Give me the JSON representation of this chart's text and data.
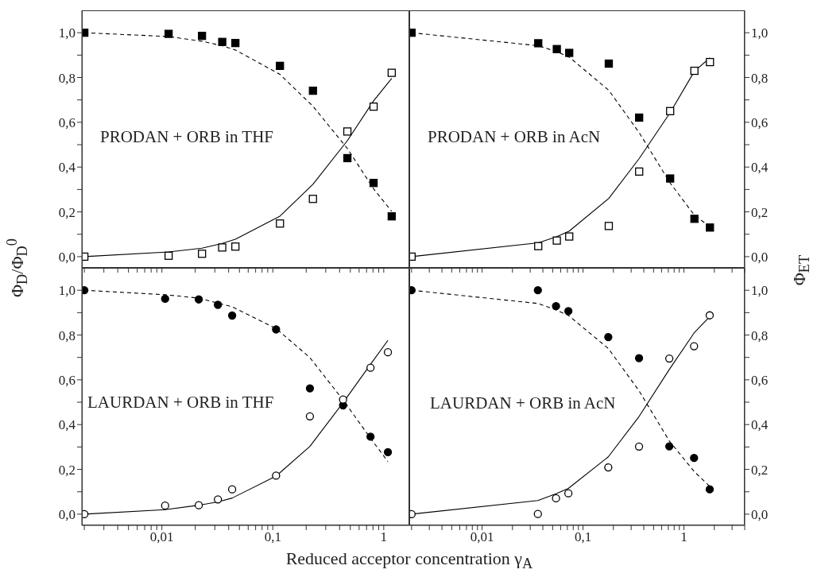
{
  "chart_data": [
    {
      "type": "scatter",
      "annotations": [
        "PRODAN + ORB in THF"
      ],
      "ylabel": "Φ$_{D}$/Φ$_{D}$$^{0}$",
      "xlim": [
        0.0019,
        1.7
      ],
      "ylim": [
        -0.05,
        1.1
      ],
      "log": "x",
      "tick_labels": "y",
      "xticks": [
        {
          "value": 0.002,
          "label": null
        },
        {
          "value": 0.003,
          "label": null
        },
        {
          "value": 0.004,
          "label": null
        },
        {
          "value": 0.005,
          "label": null
        },
        {
          "value": 0.006,
          "label": null
        },
        {
          "value": 0.007,
          "label": null
        },
        {
          "value": 0.008,
          "label": null
        },
        {
          "value": 0.009,
          "label": null
        },
        {
          "value": 0.01,
          "label": null
        },
        {
          "value": 0.02,
          "label": null
        },
        {
          "value": 0.03,
          "label": null
        },
        {
          "value": 0.04,
          "label": null
        },
        {
          "value": 0.05,
          "label": null
        },
        {
          "value": 0.06,
          "label": null
        },
        {
          "value": 0.07,
          "label": null
        },
        {
          "value": 0.08,
          "label": null
        },
        {
          "value": 0.09,
          "label": null
        },
        {
          "value": 0.1,
          "label": null
        },
        {
          "value": 0.2,
          "label": null
        },
        {
          "value": 0.3,
          "label": null
        },
        {
          "value": 0.4,
          "label": null
        },
        {
          "value": 0.5,
          "label": null
        },
        {
          "value": 0.6,
          "label": null
        },
        {
          "value": 0.7,
          "label": null
        },
        {
          "value": 0.8,
          "label": null
        },
        {
          "value": 0.9,
          "label": null
        },
        {
          "value": 1,
          "label": null
        }
      ],
      "yticks": [
        {
          "value": 0,
          "label": "0,0"
        },
        {
          "value": 0.1,
          "label": null
        },
        {
          "value": 0.2,
          "label": "0,2"
        },
        {
          "value": 0.3,
          "label": null
        },
        {
          "value": 0.4,
          "label": "0,4"
        },
        {
          "value": 0.5,
          "label": null
        },
        {
          "value": 0.6,
          "label": "0,6"
        },
        {
          "value": 0.7,
          "label": null
        },
        {
          "value": 0.8,
          "label": "0,8"
        },
        {
          "value": 0.9,
          "label": null
        },
        {
          "value": 1,
          "label": "1,0"
        }
      ],
      "series": [
        {
          "type": "line",
          "line_style": "dashed",
          "color": "#000000",
          "x": [
            0.002,
            0.0115,
            0.023,
            0.035,
            0.046,
            0.116,
            0.23,
            0.47,
            0.81,
            1.18
          ],
          "values": [
            1.0,
            0.983,
            0.962,
            0.942,
            0.923,
            0.814,
            0.672,
            0.483,
            0.303,
            0.202
          ]
        },
        {
          "type": "line",
          "line_style": "solid",
          "color": "#000000",
          "x": [
            0.002,
            0.0115,
            0.023,
            0.035,
            0.046,
            0.116,
            0.23,
            0.47,
            0.81,
            1.18
          ],
          "values": [
            0.0,
            0.021,
            0.038,
            0.059,
            0.078,
            0.181,
            0.323,
            0.518,
            0.696,
            0.796
          ]
        },
        {
          "marker": "square",
          "color": "#000000",
          "x": [
            0.002,
            0.0115,
            0.023,
            0.035,
            0.046,
            0.116,
            0.23,
            0.47,
            0.81,
            1.18
          ],
          "values": [
            1.0,
            0.995,
            0.986,
            0.959,
            0.954,
            0.852,
            0.741,
            0.44,
            0.329,
            0.18
          ]
        },
        {
          "marker": "square",
          "color": "#ffffff",
          "x": [
            0.002,
            0.0115,
            0.023,
            0.035,
            0.046,
            0.116,
            0.23,
            0.47,
            0.81,
            1.18
          ],
          "values": [
            0.0,
            0.004,
            0.013,
            0.041,
            0.045,
            0.148,
            0.258,
            0.559,
            0.67,
            0.821
          ]
        }
      ]
    },
    {
      "type": "scatter",
      "annotations": [
        "PRODAN + ORB in AcN"
      ],
      "y2label": "Φ$_{ET}$",
      "xlim": [
        0.0019,
        4
      ],
      "y2lim": [
        -0.05,
        1.1
      ],
      "log": "x",
      "tick_labels": "y",
      "xticks": [
        {
          "value": 0.002,
          "label": null
        },
        {
          "value": 0.003,
          "label": null
        },
        {
          "value": 0.004,
          "label": null
        },
        {
          "value": 0.005,
          "label": null
        },
        {
          "value": 0.006,
          "label": null
        },
        {
          "value": 0.007,
          "label": null
        },
        {
          "value": 0.008,
          "label": null
        },
        {
          "value": 0.009,
          "label": null
        },
        {
          "value": 0.01,
          "label": null
        },
        {
          "value": 0.02,
          "label": null
        },
        {
          "value": 0.03,
          "label": null
        },
        {
          "value": 0.04,
          "label": null
        },
        {
          "value": 0.05,
          "label": null
        },
        {
          "value": 0.06,
          "label": null
        },
        {
          "value": 0.07,
          "label": null
        },
        {
          "value": 0.08,
          "label": null
        },
        {
          "value": 0.09,
          "label": null
        },
        {
          "value": 0.1,
          "label": null
        },
        {
          "value": 0.2,
          "label": null
        },
        {
          "value": 0.3,
          "label": null
        },
        {
          "value": 0.4,
          "label": null
        },
        {
          "value": 0.5,
          "label": null
        },
        {
          "value": 0.6,
          "label": null
        },
        {
          "value": 0.7,
          "label": null
        },
        {
          "value": 0.8,
          "label": null
        },
        {
          "value": 0.9,
          "label": null
        },
        {
          "value": 1,
          "label": null
        },
        {
          "value": 2,
          "label": null
        },
        {
          "value": 3,
          "label": null
        },
        {
          "value": 4,
          "label": null
        }
      ],
      "y2ticks": [
        {
          "value": 0,
          "label": "0,0"
        },
        {
          "value": 0.1,
          "label": null
        },
        {
          "value": 0.2,
          "label": "0,2"
        },
        {
          "value": 0.3,
          "label": null
        },
        {
          "value": 0.4,
          "label": "0,4"
        },
        {
          "value": 0.5,
          "label": null
        },
        {
          "value": 0.6,
          "label": "0,6"
        },
        {
          "value": 0.7,
          "label": null
        },
        {
          "value": 0.8,
          "label": "0,8"
        },
        {
          "value": 0.9,
          "label": null
        },
        {
          "value": 1,
          "label": "1,0"
        }
      ],
      "series": [
        {
          "type": "line",
          "axis": "y2",
          "line_style": "dashed",
          "color": "#000000",
          "x": [
            0.002,
            0.036,
            0.055,
            0.073,
            0.18,
            0.36,
            0.73,
            1.27,
            1.81
          ],
          "values": [
            1.0,
            0.942,
            0.915,
            0.891,
            0.743,
            0.554,
            0.329,
            0.185,
            0.134
          ]
        },
        {
          "type": "line",
          "axis": "y2",
          "line_style": "solid",
          "color": "#000000",
          "x": [
            0.002,
            0.036,
            0.055,
            0.073,
            0.18,
            0.36,
            0.73,
            1.27,
            1.81
          ],
          "values": [
            0.0,
            0.062,
            0.089,
            0.114,
            0.26,
            0.438,
            0.643,
            0.828,
            0.888
          ]
        },
        {
          "axis": "y2",
          "marker": "square",
          "color": "#000000",
          "x": [
            0.002,
            0.036,
            0.055,
            0.073,
            0.18,
            0.36,
            0.73,
            1.27,
            1.81
          ],
          "values": [
            1.0,
            0.953,
            0.927,
            0.91,
            0.862,
            0.621,
            0.349,
            0.169,
            0.13
          ]
        },
        {
          "axis": "y2",
          "marker": "square",
          "color": "#ffffff",
          "x": [
            0.002,
            0.036,
            0.055,
            0.073,
            0.18,
            0.36,
            0.73,
            1.27,
            1.81
          ],
          "values": [
            0.0,
            0.047,
            0.072,
            0.09,
            0.137,
            0.38,
            0.65,
            0.83,
            0.869
          ]
        }
      ]
    },
    {
      "type": "scatter",
      "annotations": [
        "LAURDAN + ORB in THF"
      ],
      "xlabel": "Reduced acceptor concentration γ$_{A}$",
      "xlim": [
        0.0019,
        1.7
      ],
      "ylim": [
        -0.05,
        1.1
      ],
      "log": "x",
      "xticks": [
        {
          "value": 0.002,
          "label": null
        },
        {
          "value": 0.003,
          "label": null
        },
        {
          "value": 0.004,
          "label": null
        },
        {
          "value": 0.005,
          "label": null
        },
        {
          "value": 0.006,
          "label": null
        },
        {
          "value": 0.007,
          "label": null
        },
        {
          "value": 0.008,
          "label": null
        },
        {
          "value": 0.009,
          "label": null
        },
        {
          "value": 0.01,
          "label": "0,01"
        },
        {
          "value": 0.02,
          "label": null
        },
        {
          "value": 0.03,
          "label": null
        },
        {
          "value": 0.04,
          "label": null
        },
        {
          "value": 0.05,
          "label": null
        },
        {
          "value": 0.06,
          "label": null
        },
        {
          "value": 0.07,
          "label": null
        },
        {
          "value": 0.08,
          "label": null
        },
        {
          "value": 0.09,
          "label": null
        },
        {
          "value": 0.1,
          "label": "0,1"
        },
        {
          "value": 0.2,
          "label": null
        },
        {
          "value": 0.3,
          "label": null
        },
        {
          "value": 0.4,
          "label": null
        },
        {
          "value": 0.5,
          "label": null
        },
        {
          "value": 0.6,
          "label": null
        },
        {
          "value": 0.7,
          "label": null
        },
        {
          "value": 0.8,
          "label": null
        },
        {
          "value": 0.9,
          "label": null
        },
        {
          "value": 1,
          "label": "1"
        }
      ],
      "yticks": [
        {
          "value": 0,
          "label": "0,0"
        },
        {
          "value": 0.1,
          "label": null
        },
        {
          "value": 0.2,
          "label": "0,2"
        },
        {
          "value": 0.3,
          "label": null
        },
        {
          "value": 0.4,
          "label": "0,4"
        },
        {
          "value": 0.5,
          "label": null
        },
        {
          "value": 0.6,
          "label": "0,6"
        },
        {
          "value": 0.7,
          "label": null
        },
        {
          "value": 0.8,
          "label": "0,8"
        },
        {
          "value": 0.9,
          "label": null
        },
        {
          "value": 1,
          "label": "1,0"
        }
      ],
      "series": [
        {
          "type": "line",
          "line_style": "dashed",
          "color": "#000000",
          "x": [
            0.002,
            0.0107,
            0.0215,
            0.032,
            0.043,
            0.107,
            0.216,
            0.43,
            0.76,
            1.09
          ],
          "values": [
            1.0,
            0.98,
            0.965,
            0.943,
            0.926,
            0.829,
            0.699,
            0.51,
            0.339,
            0.235
          ]
        },
        {
          "type": "line",
          "line_style": "solid",
          "color": "#000000",
          "x": [
            0.002,
            0.0107,
            0.0215,
            0.032,
            0.043,
            0.107,
            0.216,
            0.43,
            0.76,
            1.09
          ],
          "values": [
            0.0,
            0.02,
            0.04,
            0.055,
            0.072,
            0.17,
            0.303,
            0.498,
            0.669,
            0.776
          ]
        },
        {
          "marker": "circle",
          "color": "#000000",
          "x": [
            0.002,
            0.0107,
            0.0215,
            0.032,
            0.043,
            0.107,
            0.216,
            0.43,
            0.76,
            1.09
          ],
          "values": [
            1.0,
            0.962,
            0.959,
            0.935,
            0.887,
            0.825,
            0.562,
            0.486,
            0.346,
            0.277
          ]
        },
        {
          "marker": "circle",
          "color": "#ffffff",
          "x": [
            0.002,
            0.0107,
            0.0215,
            0.032,
            0.043,
            0.107,
            0.216,
            0.43,
            0.76,
            1.09
          ],
          "values": [
            0.0,
            0.038,
            0.04,
            0.066,
            0.111,
            0.172,
            0.437,
            0.512,
            0.654,
            0.723
          ]
        }
      ]
    },
    {
      "type": "scatter",
      "annotations": [
        "LAURDAN + ORB in AcN"
      ],
      "xlim": [
        0.0019,
        4
      ],
      "y2lim": [
        -0.05,
        1.1
      ],
      "log": "x",
      "xticks": [
        {
          "value": 0.002,
          "label": null
        },
        {
          "value": 0.003,
          "label": null
        },
        {
          "value": 0.004,
          "label": null
        },
        {
          "value": 0.005,
          "label": null
        },
        {
          "value": 0.006,
          "label": null
        },
        {
          "value": 0.007,
          "label": null
        },
        {
          "value": 0.008,
          "label": null
        },
        {
          "value": 0.009,
          "label": null
        },
        {
          "value": 0.01,
          "label": "0,01"
        },
        {
          "value": 0.02,
          "label": null
        },
        {
          "value": 0.03,
          "label": null
        },
        {
          "value": 0.04,
          "label": null
        },
        {
          "value": 0.05,
          "label": null
        },
        {
          "value": 0.06,
          "label": null
        },
        {
          "value": 0.07,
          "label": null
        },
        {
          "value": 0.08,
          "label": null
        },
        {
          "value": 0.09,
          "label": null
        },
        {
          "value": 0.1,
          "label": "0,1"
        },
        {
          "value": 0.2,
          "label": null
        },
        {
          "value": 0.3,
          "label": null
        },
        {
          "value": 0.4,
          "label": null
        },
        {
          "value": 0.5,
          "label": null
        },
        {
          "value": 0.6,
          "label": null
        },
        {
          "value": 0.7,
          "label": null
        },
        {
          "value": 0.8,
          "label": null
        },
        {
          "value": 0.9,
          "label": null
        },
        {
          "value": 1,
          "label": "1"
        },
        {
          "value": 2,
          "label": null
        },
        {
          "value": 3,
          "label": null
        },
        {
          "value": 4,
          "label": null
        }
      ],
      "y2ticks": [
        {
          "value": 0,
          "label": "0,0"
        },
        {
          "value": 0.1,
          "label": null
        },
        {
          "value": 0.2,
          "label": "0,2"
        },
        {
          "value": 0.3,
          "label": null
        },
        {
          "value": 0.4,
          "label": "0,4"
        },
        {
          "value": 0.5,
          "label": null
        },
        {
          "value": 0.6,
          "label": "0,6"
        },
        {
          "value": 0.7,
          "label": null
        },
        {
          "value": 0.8,
          "label": "0,8"
        },
        {
          "value": 0.9,
          "label": null
        },
        {
          "value": 1,
          "label": "1,0"
        }
      ],
      "series": [
        {
          "type": "line",
          "axis": "y2",
          "line_style": "dashed",
          "color": "#000000",
          "x": [
            0.002,
            0.0357,
            0.054,
            0.0716,
            0.178,
            0.359,
            0.716,
            1.26,
            1.8
          ],
          "values": [
            1.0,
            0.941,
            0.912,
            0.888,
            0.74,
            0.551,
            0.327,
            0.191,
            0.124
          ]
        },
        {
          "type": "line",
          "axis": "y2",
          "line_style": "solid",
          "color": "#000000",
          "x": [
            0.002,
            0.0357,
            0.054,
            0.0716,
            0.178,
            0.359,
            0.716,
            1.26,
            1.8
          ],
          "values": [
            0.0,
            0.061,
            0.091,
            0.115,
            0.256,
            0.436,
            0.646,
            0.809,
            0.882
          ]
        },
        {
          "axis": "y2",
          "marker": "circle",
          "color": "#000000",
          "x": [
            0.002,
            0.0357,
            0.054,
            0.0716,
            0.178,
            0.359,
            0.716,
            1.26,
            1.8
          ],
          "values": [
            1.0,
            1.0,
            0.929,
            0.907,
            0.791,
            0.697,
            0.303,
            0.251,
            0.111
          ]
        },
        {
          "axis": "y2",
          "marker": "circle",
          "color": "#ffffff",
          "x": [
            0.002,
            0.0357,
            0.054,
            0.0716,
            0.178,
            0.359,
            0.716,
            1.26,
            1.8
          ],
          "values": [
            0.0,
            0.001,
            0.071,
            0.093,
            0.209,
            0.302,
            0.695,
            0.75,
            0.888
          ]
        }
      ]
    }
  ]
}
